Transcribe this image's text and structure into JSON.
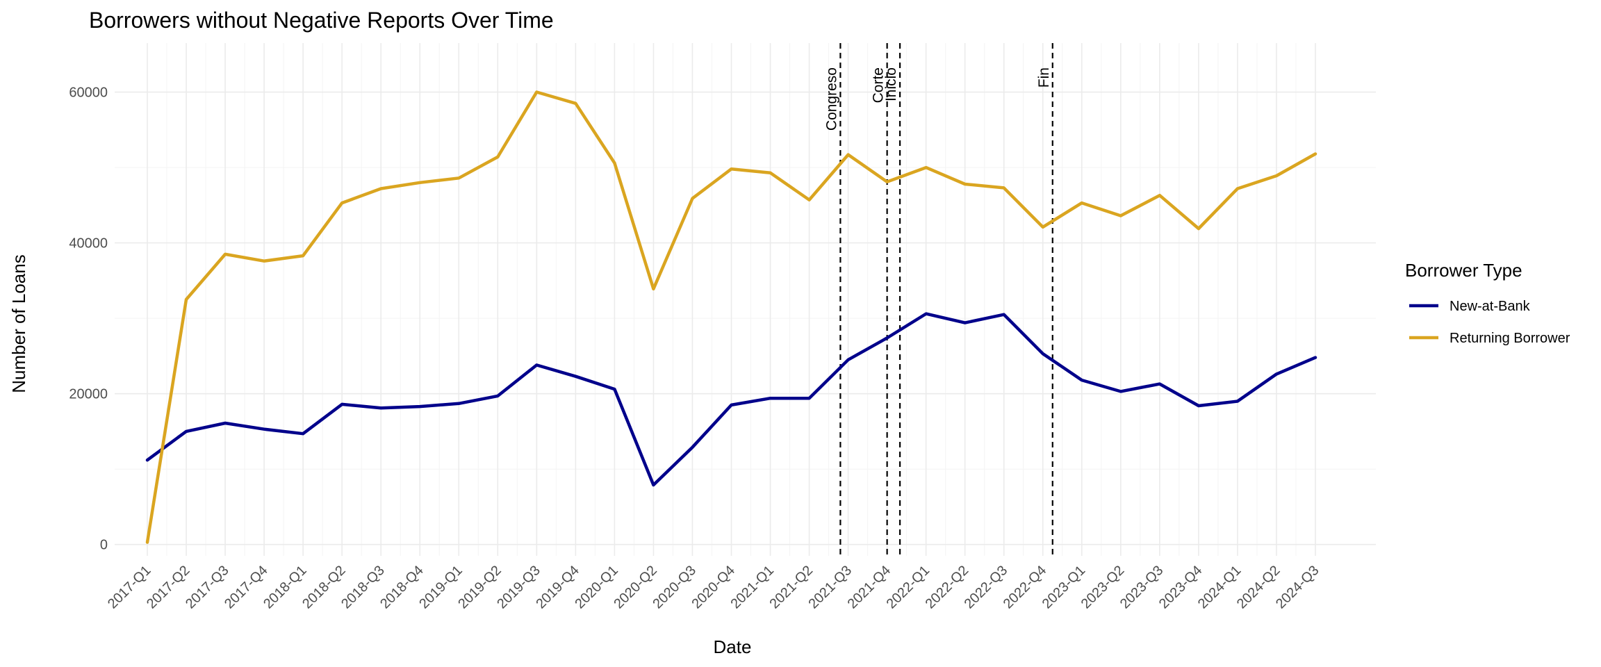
{
  "chart_data": {
    "type": "line",
    "title": "Borrowers without Negative Reports Over Time",
    "xlabel": "Date",
    "ylabel": "Number of Loans",
    "ylim": [
      -1500,
      66500
    ],
    "yticks": [
      0,
      20000,
      40000,
      60000
    ],
    "ytick_labels": [
      "0",
      "20000",
      "40000",
      "60000"
    ],
    "grid": true,
    "legend_position": "right",
    "legend_title": "Borrower Type",
    "categories": [
      "2017-Q1",
      "2017-Q2",
      "2017-Q3",
      "2017-Q4",
      "2018-Q1",
      "2018-Q2",
      "2018-Q3",
      "2018-Q4",
      "2019-Q1",
      "2019-Q2",
      "2019-Q3",
      "2019-Q4",
      "2020-Q1",
      "2020-Q2",
      "2020-Q3",
      "2020-Q4",
      "2021-Q1",
      "2021-Q2",
      "2021-Q3",
      "2021-Q4",
      "2022-Q1",
      "2022-Q2",
      "2022-Q3",
      "2022-Q4",
      "2023-Q1",
      "2023-Q2",
      "2023-Q3",
      "2023-Q4",
      "2024-Q1",
      "2024-Q2",
      "2024-Q3"
    ],
    "series": [
      {
        "name": "New-at-Bank",
        "color": "#00008B",
        "values": [
          11200,
          15000,
          16100,
          15300,
          14700,
          18600,
          18100,
          18300,
          18700,
          19700,
          23800,
          22300,
          20600,
          7900,
          12900,
          18500,
          19400,
          19400,
          24500,
          27400,
          30600,
          29400,
          30500,
          25300,
          21800,
          20300,
          21300,
          18400,
          19000,
          22600,
          24800
        ]
      },
      {
        "name": "Returning Borrower",
        "color": "#DAA520",
        "values": [
          300,
          32500,
          38500,
          37600,
          38300,
          45300,
          47200,
          48000,
          48600,
          51400,
          60000,
          58500,
          50600,
          33900,
          45900,
          49800,
          49300,
          45700,
          51700,
          48100,
          50000,
          47800,
          47300,
          42100,
          45300,
          43600,
          46300,
          41900,
          47200,
          48900,
          51800
        ]
      }
    ],
    "events": [
      {
        "label": "Congreso",
        "x": 17.8
      },
      {
        "label": "Corte",
        "x": 19.0
      },
      {
        "label": "Inicio",
        "x": 19.33
      },
      {
        "label": "Fin",
        "x": 23.25
      }
    ]
  }
}
